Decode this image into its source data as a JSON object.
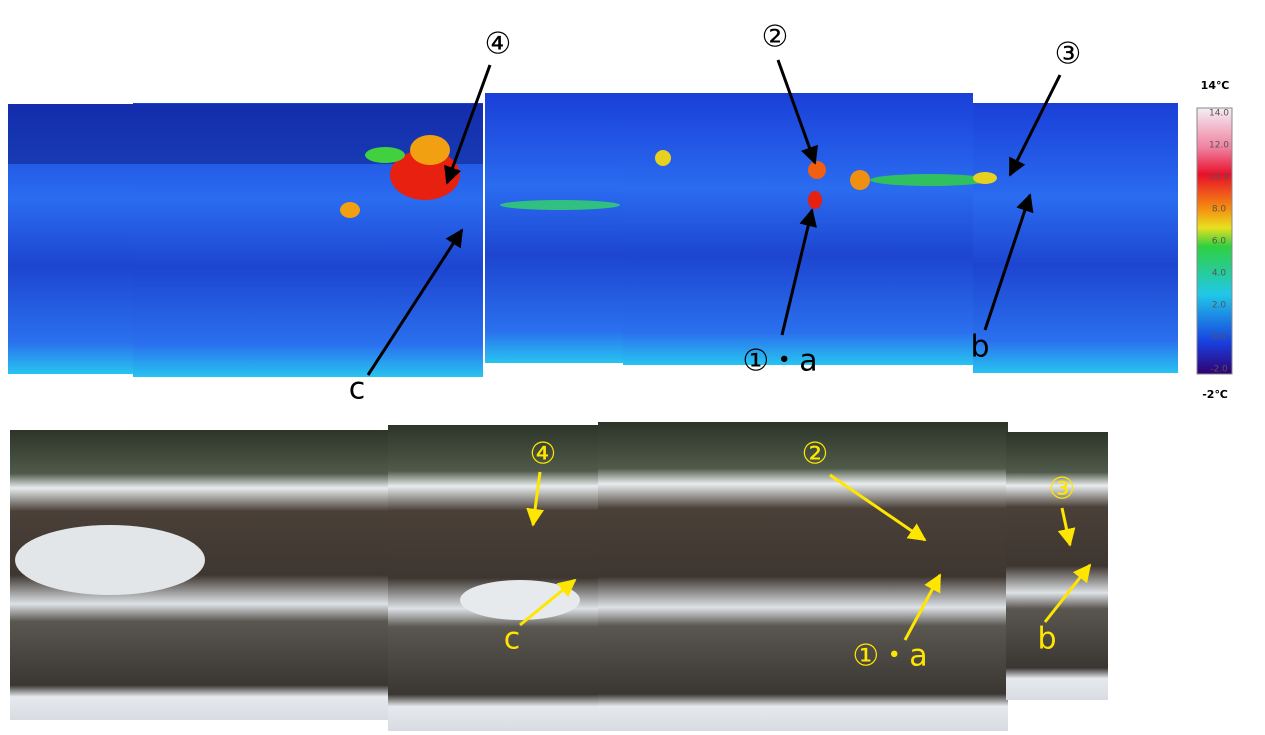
{
  "thermal_image": {
    "labels": [
      "④",
      "②",
      "③",
      "c",
      "①・a",
      "b"
    ]
  },
  "colorbar": {
    "max_label": "14℃",
    "min_label": "-2℃",
    "ticks": [
      "14.0",
      "12.0",
      "10.0",
      "8.0",
      "6.0",
      "4.0",
      "2.0",
      "0.0",
      "-2.0"
    ]
  },
  "photo": {
    "labels": [
      "④",
      "②",
      "③",
      "c",
      "①・a",
      "b"
    ]
  }
}
